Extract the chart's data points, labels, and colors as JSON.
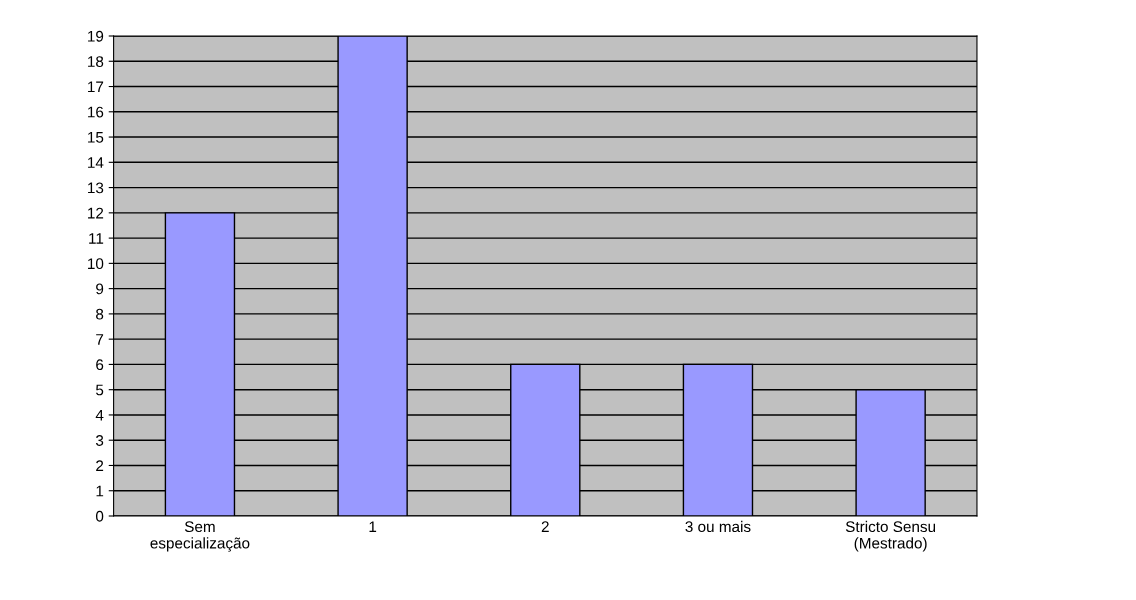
{
  "chart_data": {
    "type": "bar",
    "categories": [
      "Sem\nespecialização",
      "1",
      "2",
      "3 ou mais",
      "Stricto Sensu\n(Mestrado)"
    ],
    "values": [
      12,
      19,
      6,
      6,
      5
    ],
    "color": "#9999ff",
    "ylim": [
      0,
      19
    ],
    "yticks": [
      0,
      1,
      2,
      3,
      4,
      5,
      6,
      7,
      8,
      9,
      10,
      11,
      12,
      13,
      14,
      15,
      16,
      17,
      18,
      19
    ],
    "grid": "y"
  }
}
